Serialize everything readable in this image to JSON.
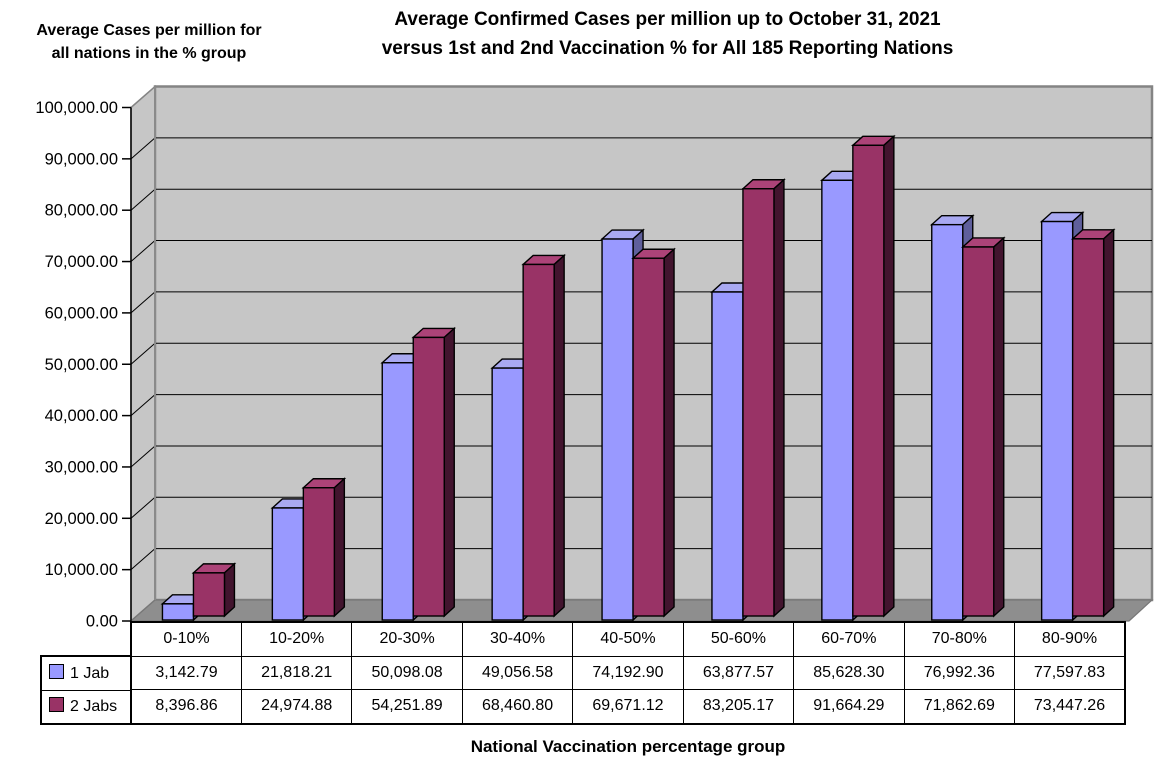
{
  "title": {
    "line1": "Average Confirmed Cases per million up to October 31, 2021",
    "line2": "versus 1st and 2nd Vaccination % for All 185 Reporting Nations"
  },
  "y_axis_title": {
    "line1": "Average Cases per million for",
    "line2": "all nations in the % group"
  },
  "x_axis_title": "National Vaccination percentage group",
  "chart_data": {
    "type": "bar",
    "style": "3d-clustered-column",
    "categories": [
      "0-10%",
      "10-20%",
      "20-30%",
      "30-40%",
      "40-50%",
      "50-60%",
      "60-70%",
      "70-80%",
      "80-90%"
    ],
    "series": [
      {
        "name": "1 Jab",
        "color": "#9999FF",
        "top_color": "#A9A9F2",
        "side_color": "#5F5F9C",
        "values": [
          3142.79,
          21818.21,
          50098.08,
          49056.58,
          74192.9,
          63877.57,
          85628.3,
          76992.36,
          77597.83
        ],
        "labels": [
          "3,142.79",
          "21,818.21",
          "50,098.08",
          "49,056.58",
          "74,192.90",
          "63,877.57",
          "85,628.30",
          "76,992.36",
          "77,597.83"
        ]
      },
      {
        "name": "2 Jabs",
        "color": "#993366",
        "top_color": "#AC4378",
        "side_color": "#42142E",
        "values": [
          8396.86,
          24974.88,
          54251.89,
          68460.8,
          69671.12,
          83205.17,
          91664.29,
          71862.69,
          73447.26
        ],
        "labels": [
          "8,396.86",
          "24,974.88",
          "54,251.89",
          "68,460.80",
          "69,671.12",
          "83,205.17",
          "91,664.29",
          "71,862.69",
          "73,447.26"
        ]
      }
    ],
    "ylim": [
      0,
      100000
    ],
    "y_ticks": [
      "100,000.00",
      "90,000.00",
      "80,000.00",
      "70,000.00",
      "60,000.00",
      "50,000.00",
      "40,000.00",
      "30,000.00",
      "20,000.00",
      "10,000.00",
      "0.00"
    ],
    "grid": true,
    "legend_position": "table-left",
    "wall_color": "#C6C6C6",
    "floor_color": "#8E8E8E",
    "background_color": "#FFFFFF"
  }
}
